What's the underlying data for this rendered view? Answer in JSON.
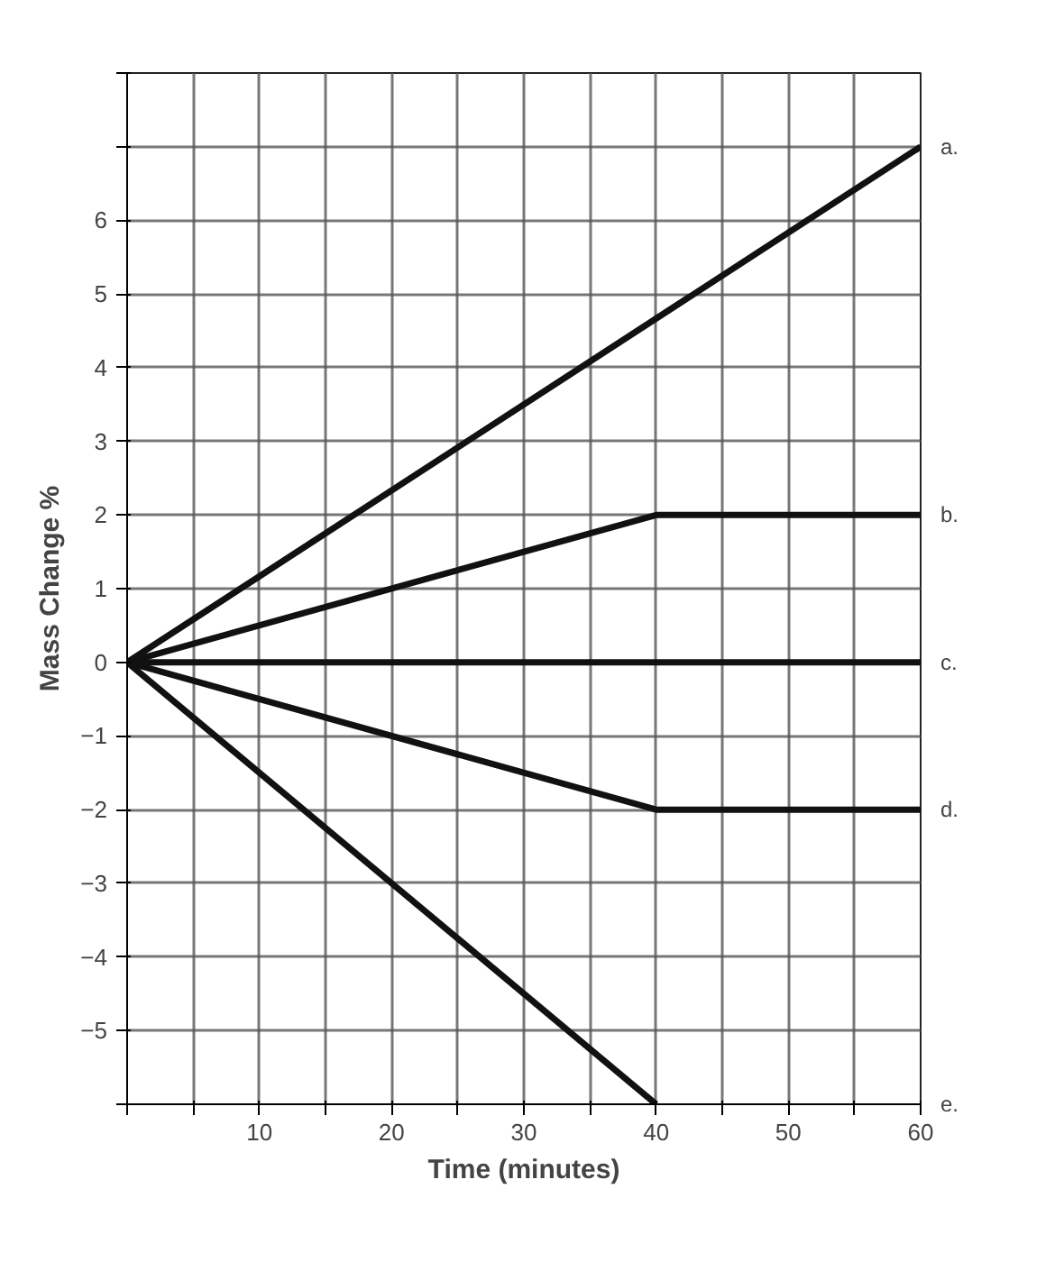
{
  "chart_data": {
    "type": "line",
    "xlabel": "Time (minutes)",
    "ylabel": "Mass Change %",
    "xlim": [
      0,
      60
    ],
    "ylim": [
      -6,
      8
    ],
    "xticks": [
      {
        "value": 0,
        "label": null
      },
      {
        "value": 5,
        "label": null
      },
      10,
      {
        "value": 15,
        "label": null
      },
      20,
      {
        "value": 25,
        "label": null
      },
      30,
      {
        "value": 35,
        "label": null
      },
      40,
      {
        "value": 45,
        "label": null
      },
      50,
      {
        "value": 55,
        "label": null
      },
      60
    ],
    "yticks": [
      {
        "value": -6,
        "label": null
      },
      {
        "value": -5,
        "label": "−5"
      },
      {
        "value": -4,
        "label": "−4"
      },
      {
        "value": -3,
        "label": "−3"
      },
      {
        "value": -2,
        "label": "−2"
      },
      {
        "value": -1,
        "label": "−1"
      },
      0,
      1,
      2,
      3,
      4,
      5,
      6,
      {
        "value": 7,
        "label": null
      },
      {
        "value": 8,
        "label": null
      }
    ],
    "grid": true,
    "marker": "none",
    "line_style": "solid",
    "series": [
      {
        "name": "a.",
        "color": "#111111",
        "x": [
          0,
          60
        ],
        "values": [
          0,
          7
        ]
      },
      {
        "name": "b.",
        "color": "#111111",
        "x": [
          0,
          40,
          60
        ],
        "values": [
          0,
          2,
          2
        ]
      },
      {
        "name": "c.",
        "color": "#111111",
        "x": [
          0,
          60
        ],
        "values": [
          0,
          0
        ]
      },
      {
        "name": "d.",
        "color": "#111111",
        "x": [
          0,
          40,
          60
        ],
        "values": [
          0,
          -2,
          -2
        ]
      },
      {
        "name": "e.",
        "color": "#111111",
        "x": [
          0,
          40
        ],
        "values": [
          0,
          -6
        ]
      }
    ]
  }
}
